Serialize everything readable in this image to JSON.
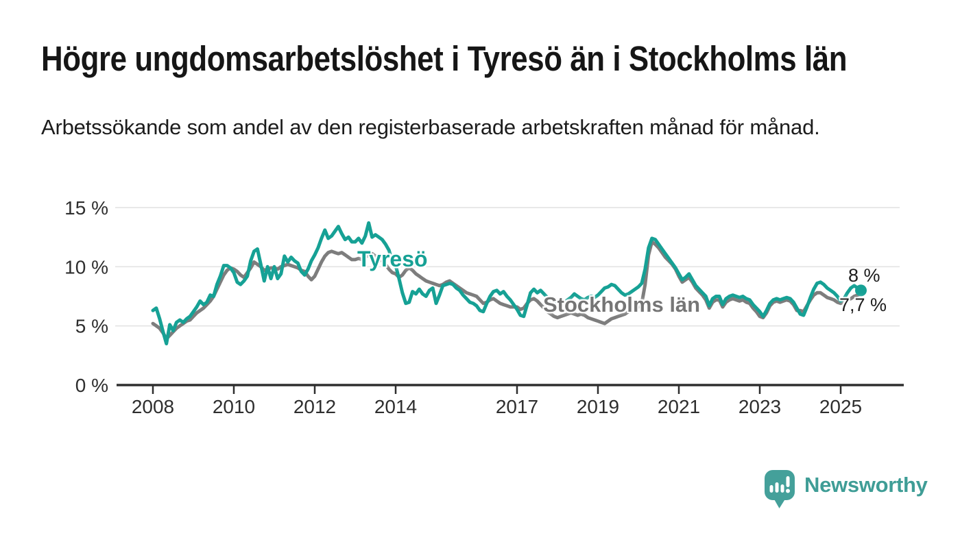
{
  "header": {
    "title": "Högre ungdomsarbetslöshet i Tyresö än i Stockholms län",
    "subtitle": "Arbetssökande som andel av den registerbaserade arbetskraften månad för månad."
  },
  "chart_data": {
    "type": "line",
    "title": "Högre ungdomsarbetslöshet i Tyresö än i Stockholms län",
    "subtitle": "Arbetssökande som andel av den registerbaserade arbetskraften månad för månad.",
    "x_start_year": 2008,
    "points_per_year": 12,
    "x_ticks": [
      2008,
      2010,
      2012,
      2014,
      2017,
      2019,
      2021,
      2023,
      2025
    ],
    "x_tick_labels": [
      "2008",
      "2010",
      "2012",
      "2014",
      "2017",
      "2019",
      "2021",
      "2023",
      "2025"
    ],
    "y_ticks": [
      0,
      5,
      10,
      15
    ],
    "y_tick_suffix": " %",
    "ylim": [
      0,
      15.5
    ],
    "xlim": [
      2007.1,
      2026.6
    ],
    "grid": "horizontal",
    "legend": "inline-labels",
    "series": [
      {
        "name": "Stockholms län",
        "color": "#7d7d7d",
        "end_label": "7,7 %",
        "end_dot": false,
        "values": [
          5.2,
          5.0,
          4.8,
          4.4,
          3.9,
          4.2,
          4.5,
          4.8,
          5.0,
          5.2,
          5.4,
          5.5,
          5.8,
          6.1,
          6.3,
          6.5,
          6.8,
          7.1,
          7.5,
          8.1,
          8.7,
          9.3,
          9.7,
          9.9,
          9.8,
          9.6,
          9.3,
          9.1,
          9.5,
          9.9,
          10.4,
          10.2,
          10.0,
          9.7,
          9.8,
          9.9,
          9.9,
          9.8,
          10.0,
          10.1,
          10.2,
          10.1,
          10.0,
          9.9,
          9.7,
          9.6,
          9.2,
          8.9,
          9.2,
          9.8,
          10.4,
          10.9,
          11.2,
          11.3,
          11.2,
          11.1,
          11.2,
          11.0,
          10.8,
          10.6,
          10.6,
          10.7,
          10.6,
          10.8,
          11.0,
          11.1,
          10.9,
          10.7,
          10.5,
          10.2,
          9.8,
          9.5,
          9.4,
          9.1,
          9.3,
          9.7,
          9.9,
          9.7,
          9.4,
          9.2,
          9.0,
          8.8,
          8.7,
          8.6,
          8.5,
          8.4,
          8.5,
          8.7,
          8.8,
          8.6,
          8.4,
          8.2,
          8.0,
          7.8,
          7.7,
          7.6,
          7.5,
          7.2,
          6.9,
          7.0,
          7.2,
          7.3,
          7.1,
          6.9,
          6.8,
          6.7,
          6.6,
          6.6,
          6.6,
          6.4,
          6.5,
          6.9,
          7.2,
          7.3,
          7.1,
          6.8,
          6.5,
          6.2,
          6.0,
          5.8,
          5.7,
          5.8,
          5.9,
          6.0,
          6.1,
          6.0,
          5.9,
          6.0,
          5.9,
          5.7,
          5.6,
          5.5,
          5.4,
          5.3,
          5.2,
          5.4,
          5.6,
          5.7,
          5.8,
          5.9,
          6.0,
          6.2,
          6.3,
          6.5,
          6.6,
          6.9,
          8.5,
          11.0,
          12.1,
          11.9,
          11.6,
          11.2,
          10.8,
          10.5,
          10.2,
          9.8,
          9.2,
          8.7,
          8.9,
          9.1,
          8.7,
          8.2,
          7.9,
          7.6,
          7.2,
          6.5,
          7.0,
          7.2,
          7.2,
          6.6,
          7.0,
          7.2,
          7.3,
          7.2,
          7.1,
          7.2,
          7.0,
          6.9,
          6.5,
          6.2,
          5.8,
          5.7,
          6.1,
          6.7,
          7.0,
          7.1,
          7.0,
          7.1,
          7.2,
          7.1,
          6.8,
          6.3,
          6.3,
          6.2,
          6.7,
          7.2,
          7.6,
          7.8,
          7.8,
          7.6,
          7.4,
          7.3,
          7.2,
          7.0,
          6.9,
          7.0,
          7.2,
          7.3,
          7.5,
          7.6,
          7.7
        ]
      },
      {
        "name": "Tyresö",
        "color": "#16a195",
        "end_label": "8 %",
        "end_dot": true,
        "values": [
          6.3,
          6.5,
          5.6,
          4.5,
          3.5,
          5.1,
          4.6,
          5.3,
          5.5,
          5.3,
          5.6,
          5.8,
          6.2,
          6.6,
          7.1,
          6.8,
          7.0,
          7.6,
          7.5,
          8.5,
          9.2,
          10.1,
          10.1,
          9.9,
          9.5,
          8.7,
          8.5,
          8.8,
          9.2,
          10.5,
          11.3,
          11.5,
          10.2,
          8.8,
          10.0,
          9.0,
          10.0,
          9.0,
          9.4,
          10.9,
          10.4,
          10.8,
          10.5,
          10.3,
          9.6,
          9.3,
          9.8,
          10.5,
          11.0,
          11.6,
          12.4,
          13.1,
          12.4,
          12.6,
          13.0,
          13.4,
          12.8,
          12.3,
          12.5,
          12.1,
          12.1,
          12.4,
          12.0,
          12.6,
          13.7,
          12.5,
          12.7,
          12.5,
          12.3,
          11.9,
          11.4,
          10.5,
          10.1,
          9.0,
          7.8,
          6.9,
          7.0,
          7.9,
          7.7,
          8.1,
          7.7,
          7.5,
          8.0,
          8.2,
          6.9,
          7.6,
          8.4,
          8.5,
          8.6,
          8.5,
          8.2,
          8.0,
          7.6,
          7.3,
          7.0,
          6.9,
          6.7,
          6.3,
          6.2,
          6.9,
          7.5,
          7.9,
          8.0,
          7.7,
          7.9,
          7.5,
          7.2,
          6.8,
          6.4,
          5.9,
          5.8,
          6.8,
          7.8,
          8.1,
          7.8,
          8.0,
          7.7,
          7.4,
          7.1,
          6.9,
          6.9,
          7.1,
          7.0,
          7.2,
          7.4,
          7.7,
          7.5,
          7.3,
          7.2,
          7.4,
          7.5,
          7.4,
          7.6,
          7.9,
          8.2,
          8.3,
          8.5,
          8.4,
          8.1,
          7.8,
          7.6,
          7.7,
          7.9,
          8.1,
          8.3,
          8.6,
          9.8,
          11.6,
          12.4,
          12.3,
          11.9,
          11.5,
          11.1,
          10.7,
          10.3,
          9.9,
          9.4,
          8.9,
          9.1,
          9.4,
          8.9,
          8.4,
          8.1,
          7.8,
          7.5,
          6.7,
          7.3,
          7.5,
          7.5,
          6.8,
          7.3,
          7.5,
          7.6,
          7.5,
          7.4,
          7.5,
          7.3,
          7.2,
          6.8,
          6.5,
          6.2,
          5.8,
          6.3,
          6.9,
          7.2,
          7.3,
          7.2,
          7.3,
          7.4,
          7.3,
          7.0,
          6.5,
          6.0,
          5.9,
          6.6,
          7.4,
          8.1,
          8.6,
          8.7,
          8.5,
          8.2,
          8.0,
          7.8,
          7.5,
          7.1,
          7.3,
          7.8,
          8.2,
          8.4,
          8.2,
          8.0
        ]
      }
    ]
  },
  "footer": {
    "brand": "Newsworthy"
  },
  "colors": {
    "tyreso_line": "#16a195",
    "stockholm_line": "#7d7d7d",
    "brand_teal": "#3f9d96",
    "logo_fill": "#44a09a",
    "title_text": "#161616",
    "axis_text": "#2e2e2e",
    "gridline": "#e3e3e3"
  }
}
